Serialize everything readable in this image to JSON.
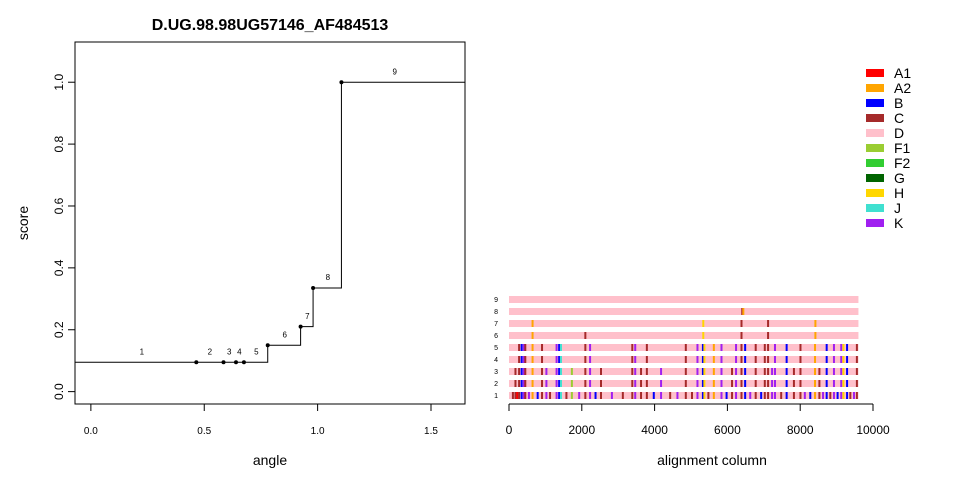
{
  "chart_data": [
    {
      "type": "line",
      "title": "D.UG.98.98UG57146_AF484513",
      "xlabel": "angle",
      "ylabel": "score",
      "xlim": [
        -0.07,
        1.65
      ],
      "ylim": [
        -0.04,
        1.13
      ],
      "xticks": [
        0.0,
        0.5,
        1.0,
        1.5
      ],
      "xtick_labels": [
        "0.0",
        "0.5",
        "1.0",
        "1.5"
      ],
      "yticks": [
        0.0,
        0.2,
        0.4,
        0.6,
        0.8,
        1.0
      ],
      "ytick_labels": [
        "0.0",
        "0.2",
        "0.4",
        "0.6",
        "0.8",
        "1.0"
      ],
      "step_points": [
        {
          "label": "1",
          "x": -0.07,
          "y": 0.095
        },
        {
          "label": "2",
          "x": 0.465,
          "y": 0.095
        },
        {
          "label": "3",
          "x": 0.585,
          "y": 0.095
        },
        {
          "label": "4",
          "x": 0.64,
          "y": 0.095
        },
        {
          "label": "5",
          "x": 0.675,
          "y": 0.095
        },
        {
          "label": "6",
          "x": 0.78,
          "y": 0.15
        },
        {
          "label": "7",
          "x": 0.925,
          "y": 0.21
        },
        {
          "label": "8",
          "x": 0.98,
          "y": 0.335
        },
        {
          "label": "9",
          "x": 1.105,
          "y": 1.0
        }
      ],
      "point_labels": [
        {
          "text": "1",
          "x": 0.225,
          "y": 0.12
        },
        {
          "text": "2",
          "x": 0.525,
          "y": 0.12
        },
        {
          "text": "3",
          "x": 0.61,
          "y": 0.12
        },
        {
          "text": "4",
          "x": 0.655,
          "y": 0.12
        },
        {
          "text": "5",
          "x": 0.73,
          "y": 0.12
        },
        {
          "text": "6",
          "x": 0.855,
          "y": 0.175
        },
        {
          "text": "7",
          "x": 0.955,
          "y": 0.235
        },
        {
          "text": "8",
          "x": 1.045,
          "y": 0.36
        },
        {
          "text": "9",
          "x": 1.34,
          "y": 1.025
        }
      ]
    },
    {
      "type": "heatmap",
      "xlabel": "alignment column",
      "xlim": [
        0,
        10000
      ],
      "xticks": [
        0,
        2000,
        4000,
        6000,
        8000,
        10000
      ],
      "xtick_labels": [
        "0",
        "2000",
        "4000",
        "6000",
        "8000",
        "10000"
      ],
      "sequence_length": 9600,
      "base_subtype": "D",
      "rows": [
        "1",
        "2",
        "3",
        "4",
        "5",
        "6",
        "7",
        "8",
        "9"
      ],
      "legend_position": "top-right",
      "legend": [
        {
          "name": "A1",
          "color": "#ff0000"
        },
        {
          "name": "A2",
          "color": "#ffa500"
        },
        {
          "name": "B",
          "color": "#0000ff"
        },
        {
          "name": "C",
          "color": "#a52a2a"
        },
        {
          "name": "D",
          "color": "#ffc0cb"
        },
        {
          "name": "F1",
          "color": "#9acd32"
        },
        {
          "name": "F2",
          "color": "#32cd32"
        },
        {
          "name": "G",
          "color": "#006400"
        },
        {
          "name": "H",
          "color": "#ffd700"
        },
        {
          "name": "J",
          "color": "#40e0d0"
        },
        {
          "name": "K",
          "color": "#a020f0"
        }
      ],
      "row_marks": {
        "9": [],
        "8": [
          [
            6380,
            "C"
          ],
          [
            6410,
            "A2"
          ]
        ],
        "7": [
          [
            620,
            "A2"
          ],
          [
            5310,
            "H"
          ],
          [
            6360,
            "C"
          ],
          [
            7090,
            "C"
          ],
          [
            8390,
            "A2"
          ]
        ],
        "6": [
          [
            620,
            "A2"
          ],
          [
            2070,
            "C"
          ],
          [
            5310,
            "H"
          ],
          [
            6360,
            "C"
          ],
          [
            7090,
            "C"
          ],
          [
            8390,
            "A2"
          ]
        ],
        "5": [
          [
            250,
            "C"
          ],
          [
            320,
            "B"
          ],
          [
            380,
            "K"
          ],
          [
            420,
            "C"
          ],
          [
            620,
            "A2"
          ],
          [
            880,
            "C"
          ],
          [
            1280,
            "K"
          ],
          [
            1350,
            "B"
          ],
          [
            1400,
            "J"
          ],
          [
            2070,
            "C"
          ],
          [
            2200,
            "K"
          ],
          [
            3360,
            "C"
          ],
          [
            3440,
            "K"
          ],
          [
            3760,
            "C"
          ],
          [
            4830,
            "C"
          ],
          [
            5150,
            "K"
          ],
          [
            5300,
            "B"
          ],
          [
            5340,
            "H"
          ],
          [
            5600,
            "A2"
          ],
          [
            5810,
            "K"
          ],
          [
            6210,
            "K"
          ],
          [
            6360,
            "C"
          ],
          [
            6460,
            "B"
          ],
          [
            6750,
            "C"
          ],
          [
            7000,
            "C"
          ],
          [
            7090,
            "C"
          ],
          [
            7280,
            "K"
          ],
          [
            7600,
            "B"
          ],
          [
            7980,
            "C"
          ],
          [
            8380,
            "A2"
          ],
          [
            8700,
            "B"
          ],
          [
            8900,
            "K"
          ],
          [
            9100,
            "K"
          ],
          [
            9160,
            "H"
          ],
          [
            9260,
            "B"
          ],
          [
            9530,
            "C"
          ]
        ],
        "4": [
          [
            250,
            "C"
          ],
          [
            320,
            "B"
          ],
          [
            380,
            "K"
          ],
          [
            420,
            "C"
          ],
          [
            620,
            "A2"
          ],
          [
            880,
            "C"
          ],
          [
            1280,
            "K"
          ],
          [
            1350,
            "B"
          ],
          [
            1400,
            "J"
          ],
          [
            2070,
            "C"
          ],
          [
            2200,
            "K"
          ],
          [
            3360,
            "C"
          ],
          [
            3440,
            "K"
          ],
          [
            3760,
            "C"
          ],
          [
            4830,
            "C"
          ],
          [
            5150,
            "K"
          ],
          [
            5300,
            "B"
          ],
          [
            5340,
            "H"
          ],
          [
            5600,
            "A2"
          ],
          [
            5810,
            "K"
          ],
          [
            6210,
            "K"
          ],
          [
            6360,
            "C"
          ],
          [
            6460,
            "B"
          ],
          [
            6750,
            "C"
          ],
          [
            7000,
            "C"
          ],
          [
            7090,
            "C"
          ],
          [
            7280,
            "K"
          ],
          [
            7600,
            "B"
          ],
          [
            7980,
            "C"
          ],
          [
            8380,
            "A2"
          ],
          [
            8700,
            "B"
          ],
          [
            8900,
            "K"
          ],
          [
            9100,
            "K"
          ],
          [
            9160,
            "H"
          ],
          [
            9260,
            "B"
          ],
          [
            9530,
            "C"
          ]
        ],
        "3": [
          [
            150,
            "C"
          ],
          [
            250,
            "C"
          ],
          [
            320,
            "B"
          ],
          [
            380,
            "K"
          ],
          [
            420,
            "C"
          ],
          [
            620,
            "A2"
          ],
          [
            880,
            "C"
          ],
          [
            1000,
            "K"
          ],
          [
            1280,
            "K"
          ],
          [
            1350,
            "B"
          ],
          [
            1400,
            "J"
          ],
          [
            1700,
            "F1"
          ],
          [
            2070,
            "C"
          ],
          [
            2200,
            "K"
          ],
          [
            2500,
            "C"
          ],
          [
            3360,
            "C"
          ],
          [
            3440,
            "K"
          ],
          [
            3600,
            "C"
          ],
          [
            3760,
            "C"
          ],
          [
            4150,
            "K"
          ],
          [
            4830,
            "C"
          ],
          [
            5150,
            "K"
          ],
          [
            5300,
            "B"
          ],
          [
            5340,
            "H"
          ],
          [
            5600,
            "A2"
          ],
          [
            5810,
            "K"
          ],
          [
            6100,
            "C"
          ],
          [
            6210,
            "K"
          ],
          [
            6360,
            "C"
          ],
          [
            6460,
            "B"
          ],
          [
            6750,
            "C"
          ],
          [
            7000,
            "C"
          ],
          [
            7090,
            "C"
          ],
          [
            7200,
            "K"
          ],
          [
            7280,
            "K"
          ],
          [
            7600,
            "B"
          ],
          [
            7800,
            "C"
          ],
          [
            7980,
            "C"
          ],
          [
            8380,
            "A2"
          ],
          [
            8500,
            "C"
          ],
          [
            8700,
            "B"
          ],
          [
            8900,
            "K"
          ],
          [
            9100,
            "K"
          ],
          [
            9160,
            "H"
          ],
          [
            9260,
            "B"
          ],
          [
            9530,
            "C"
          ]
        ],
        "2": [
          [
            150,
            "C"
          ],
          [
            250,
            "C"
          ],
          [
            320,
            "B"
          ],
          [
            380,
            "K"
          ],
          [
            420,
            "C"
          ],
          [
            620,
            "A2"
          ],
          [
            880,
            "C"
          ],
          [
            1000,
            "K"
          ],
          [
            1280,
            "K"
          ],
          [
            1350,
            "B"
          ],
          [
            1400,
            "J"
          ],
          [
            1700,
            "F1"
          ],
          [
            2070,
            "C"
          ],
          [
            2200,
            "K"
          ],
          [
            2500,
            "C"
          ],
          [
            3360,
            "C"
          ],
          [
            3440,
            "K"
          ],
          [
            3600,
            "C"
          ],
          [
            3760,
            "C"
          ],
          [
            4150,
            "K"
          ],
          [
            4830,
            "C"
          ],
          [
            5150,
            "K"
          ],
          [
            5300,
            "B"
          ],
          [
            5340,
            "H"
          ],
          [
            5600,
            "A2"
          ],
          [
            5810,
            "K"
          ],
          [
            6100,
            "C"
          ],
          [
            6210,
            "K"
          ],
          [
            6360,
            "C"
          ],
          [
            6460,
            "B"
          ],
          [
            6750,
            "C"
          ],
          [
            7000,
            "C"
          ],
          [
            7090,
            "C"
          ],
          [
            7200,
            "K"
          ],
          [
            7280,
            "K"
          ],
          [
            7600,
            "B"
          ],
          [
            7800,
            "C"
          ],
          [
            7980,
            "C"
          ],
          [
            8380,
            "A2"
          ],
          [
            8500,
            "C"
          ],
          [
            8700,
            "B"
          ],
          [
            8900,
            "K"
          ],
          [
            9100,
            "K"
          ],
          [
            9160,
            "H"
          ],
          [
            9260,
            "B"
          ],
          [
            9530,
            "C"
          ]
        ],
        "1": [
          [
            80,
            "C"
          ],
          [
            150,
            "C"
          ],
          [
            200,
            "A1"
          ],
          [
            250,
            "C"
          ],
          [
            320,
            "B"
          ],
          [
            380,
            "K"
          ],
          [
            420,
            "C"
          ],
          [
            520,
            "K"
          ],
          [
            620,
            "A2"
          ],
          [
            760,
            "B"
          ],
          [
            880,
            "C"
          ],
          [
            1000,
            "K"
          ],
          [
            1100,
            "C"
          ],
          [
            1280,
            "K"
          ],
          [
            1350,
            "B"
          ],
          [
            1400,
            "J"
          ],
          [
            1550,
            "C"
          ],
          [
            1700,
            "F1"
          ],
          [
            1900,
            "K"
          ],
          [
            2070,
            "C"
          ],
          [
            2200,
            "K"
          ],
          [
            2350,
            "B"
          ],
          [
            2500,
            "C"
          ],
          [
            2800,
            "K"
          ],
          [
            3100,
            "C"
          ],
          [
            3360,
            "C"
          ],
          [
            3440,
            "K"
          ],
          [
            3600,
            "C"
          ],
          [
            3760,
            "C"
          ],
          [
            3950,
            "B"
          ],
          [
            4150,
            "K"
          ],
          [
            4400,
            "C"
          ],
          [
            4600,
            "K"
          ],
          [
            4830,
            "C"
          ],
          [
            5000,
            "C"
          ],
          [
            5150,
            "K"
          ],
          [
            5300,
            "B"
          ],
          [
            5340,
            "H"
          ],
          [
            5450,
            "C"
          ],
          [
            5600,
            "A2"
          ],
          [
            5810,
            "K"
          ],
          [
            5950,
            "B"
          ],
          [
            6100,
            "C"
          ],
          [
            6210,
            "K"
          ],
          [
            6360,
            "C"
          ],
          [
            6460,
            "B"
          ],
          [
            6600,
            "K"
          ],
          [
            6750,
            "C"
          ],
          [
            6900,
            "B"
          ],
          [
            7000,
            "C"
          ],
          [
            7090,
            "C"
          ],
          [
            7200,
            "K"
          ],
          [
            7280,
            "K"
          ],
          [
            7450,
            "C"
          ],
          [
            7600,
            "B"
          ],
          [
            7800,
            "C"
          ],
          [
            7980,
            "C"
          ],
          [
            8100,
            "K"
          ],
          [
            8250,
            "B"
          ],
          [
            8380,
            "A2"
          ],
          [
            8500,
            "C"
          ],
          [
            8600,
            "K"
          ],
          [
            8700,
            "B"
          ],
          [
            8800,
            "C"
          ],
          [
            8900,
            "K"
          ],
          [
            9000,
            "B"
          ],
          [
            9100,
            "K"
          ],
          [
            9160,
            "H"
          ],
          [
            9260,
            "B"
          ],
          [
            9350,
            "C"
          ],
          [
            9450,
            "K"
          ],
          [
            9530,
            "C"
          ]
        ]
      }
    }
  ]
}
